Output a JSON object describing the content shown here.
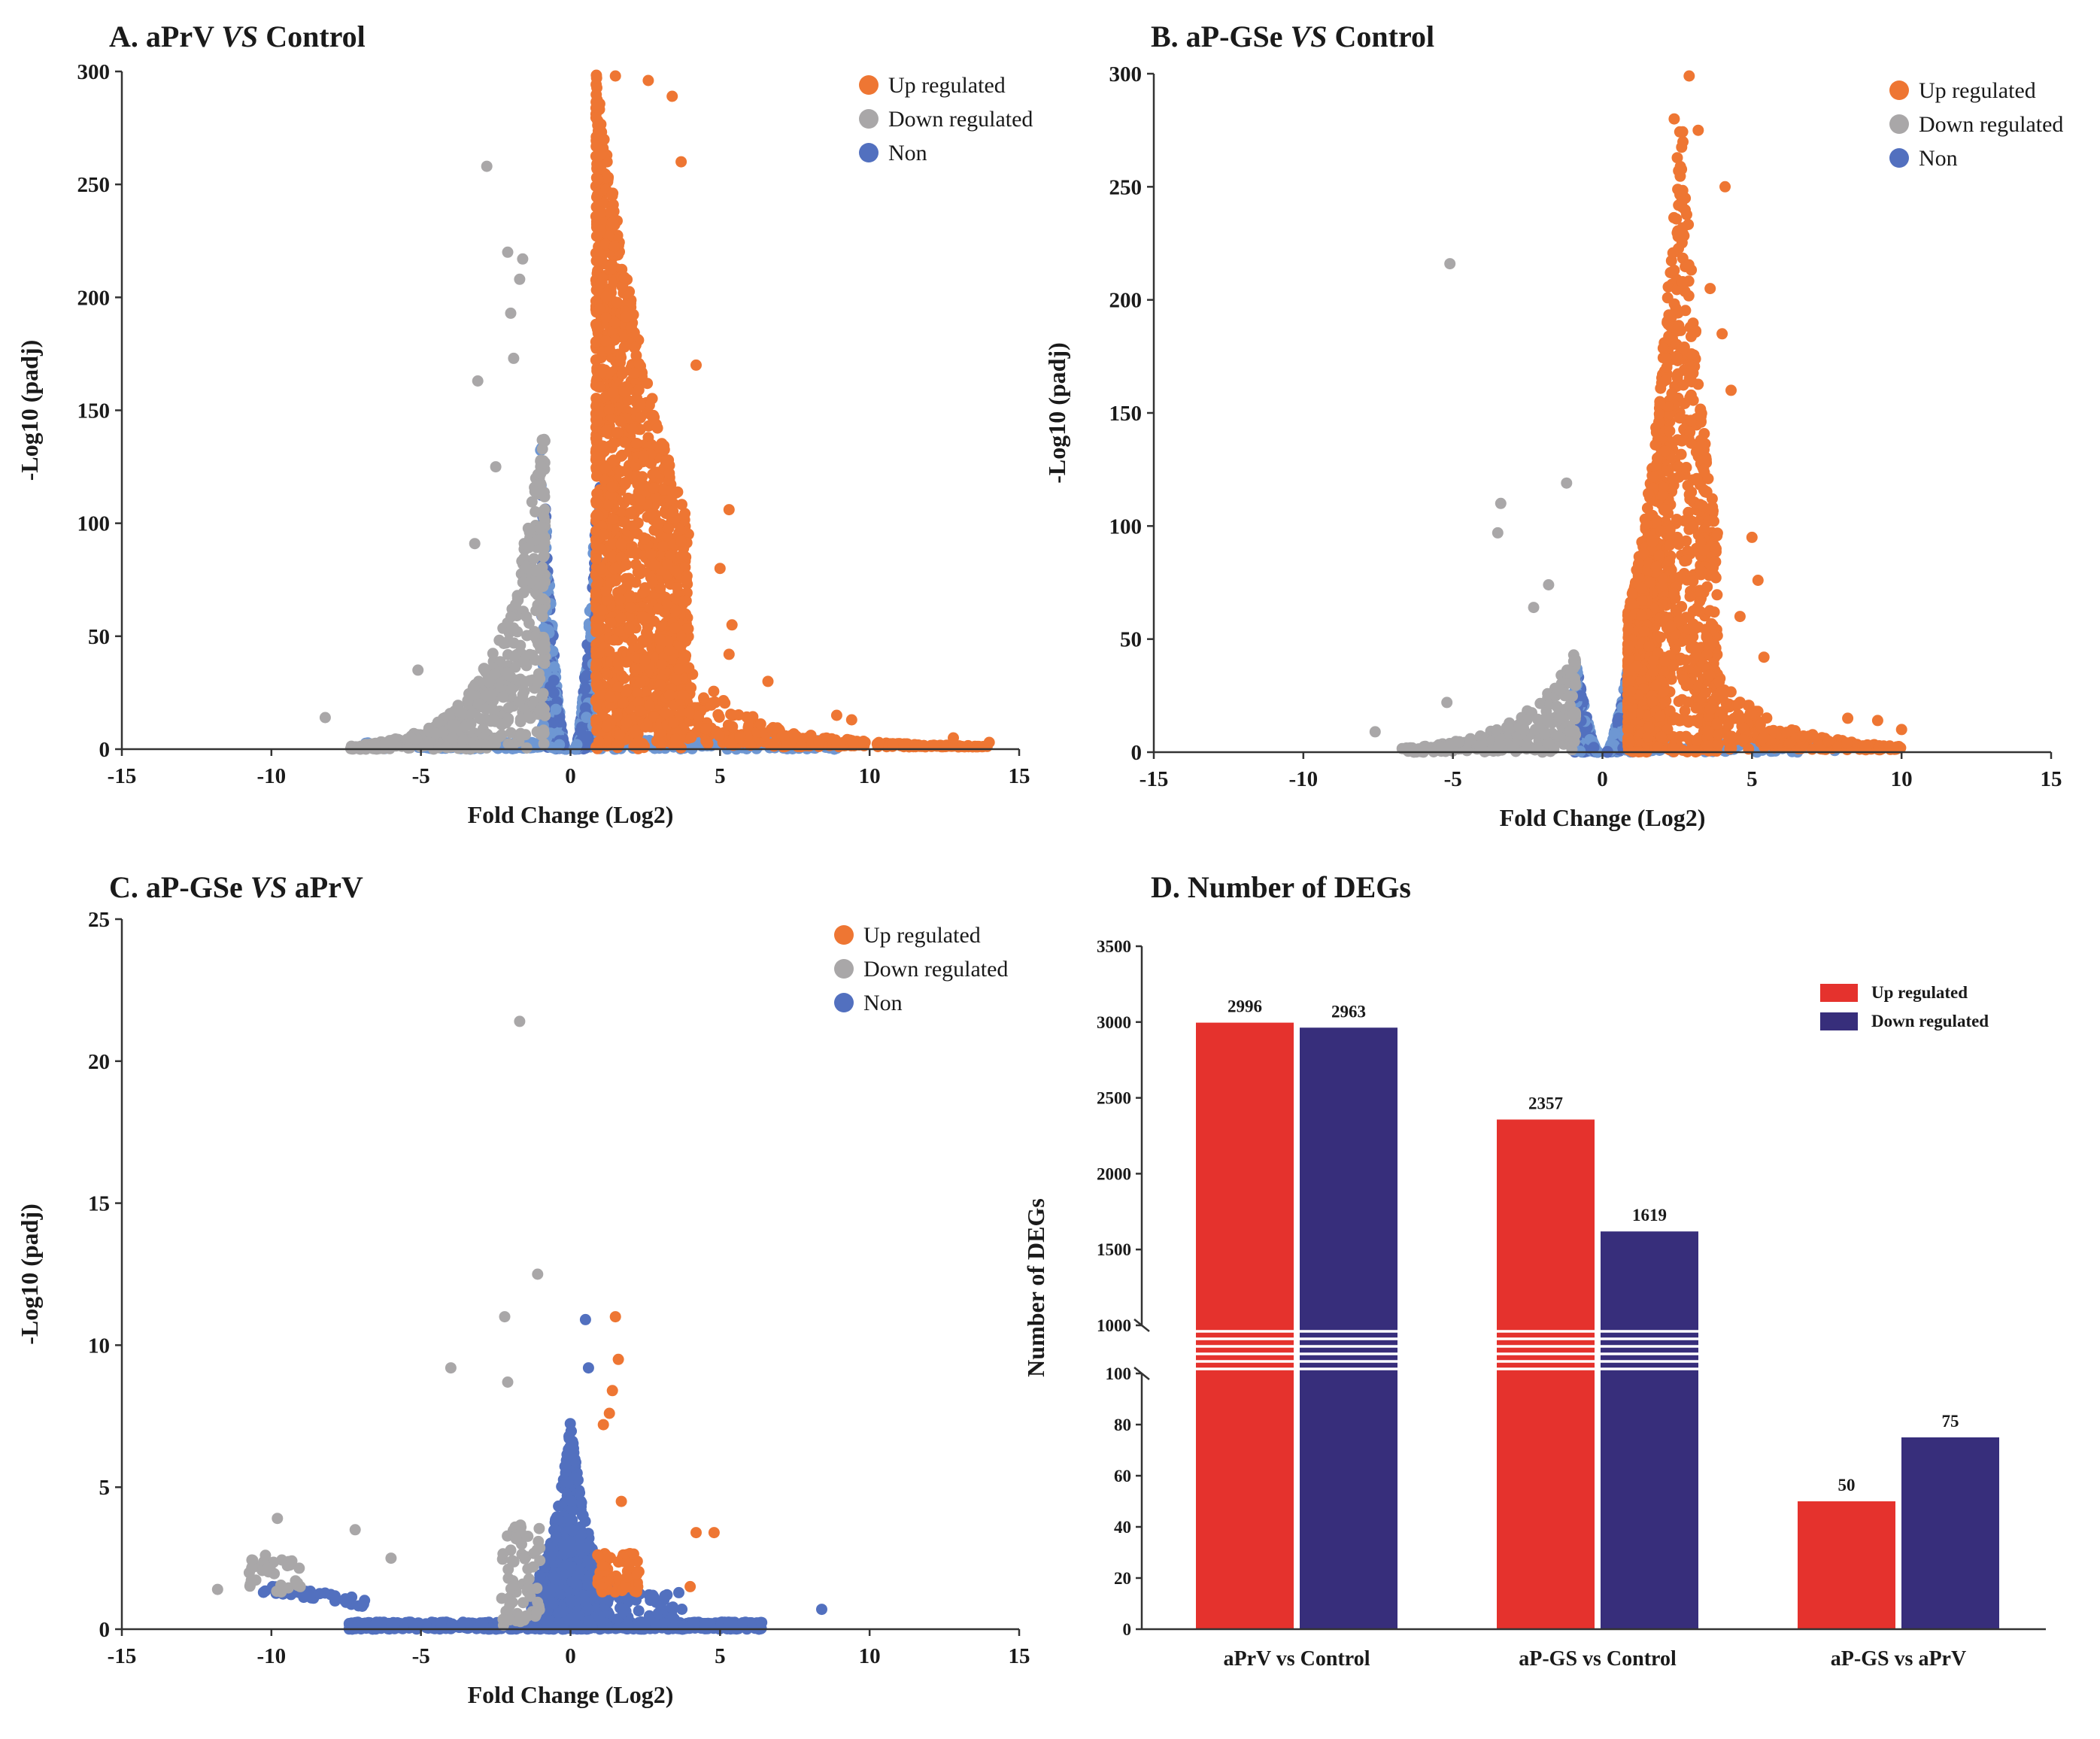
{
  "colors": {
    "up": "#EE7633",
    "down": "#A9A7A8",
    "non": "#5270BF",
    "non_light": "#6E97D3",
    "bar_up": "#E5322D",
    "bar_down": "#372E7B",
    "axis": "#333333"
  },
  "chart_data": [
    {
      "type": "scatter",
      "title_prefix": "A. aPrV ",
      "title_vs": "VS",
      "title_suffix": " Control",
      "xlabel": "Fold Change (Log2)",
      "ylabel": "-Log10 (padj)",
      "xlim": [
        -15,
        15
      ],
      "ylim": [
        0,
        300
      ],
      "xticks": [
        "-15",
        "-10",
        "-5",
        "0",
        "5",
        "10",
        "15"
      ],
      "yticks": [
        "0",
        "50",
        "100",
        "150",
        "200",
        "250",
        "300"
      ],
      "legend": [
        "Up regulated",
        "Down regulated",
        "Non"
      ],
      "notable_points": {
        "down": [
          [
            -2.8,
            258
          ],
          [
            -2.1,
            220
          ],
          [
            -1.6,
            217
          ],
          [
            -1.7,
            208
          ],
          [
            -2.0,
            193
          ],
          [
            -1.9,
            173
          ],
          [
            -3.1,
            163
          ],
          [
            -8.2,
            14
          ],
          [
            -5.1,
            35
          ],
          [
            -3.2,
            91
          ],
          [
            -2.5,
            125
          ]
        ],
        "up": [
          [
            1.5,
            298
          ],
          [
            2.6,
            296
          ],
          [
            3.4,
            289
          ],
          [
            3.7,
            260
          ],
          [
            4.2,
            170
          ],
          [
            5.3,
            106
          ],
          [
            5.0,
            80
          ],
          [
            5.4,
            55
          ],
          [
            5.3,
            42
          ],
          [
            6.6,
            30
          ],
          [
            8.9,
            15
          ],
          [
            9.4,
            13
          ],
          [
            12.8,
            5
          ],
          [
            14.0,
            3
          ]
        ]
      },
      "cloud": {
        "down": {
          "x_range": [
            -7.5,
            -0.8
          ],
          "y_peak": 150
        },
        "non": {
          "x_range": [
            -1,
            1
          ],
          "y_peak": 150
        },
        "up": {
          "x_range": [
            0.8,
            14
          ],
          "y_peak": 300
        }
      }
    },
    {
      "type": "scatter",
      "title_prefix": "B. aP-GSe ",
      "title_vs": "VS",
      "title_suffix": " Control",
      "xlabel": "Fold Change (Log2)",
      "ylabel": "-Log10 (padj)",
      "xlim": [
        -15,
        15
      ],
      "ylim": [
        0,
        300
      ],
      "xticks": [
        "-15",
        "-10",
        "-5",
        "0",
        "5",
        "10",
        "15"
      ],
      "yticks": [
        "0",
        "50",
        "100",
        "150",
        "200",
        "250",
        "300"
      ],
      "legend": [
        "Up regulated",
        "Down regulated",
        "Non"
      ],
      "notable_points": {
        "down": [
          [
            -5.1,
            216
          ],
          [
            -1.2,
            119
          ],
          [
            -3.4,
            110
          ],
          [
            -3.5,
            97
          ],
          [
            -1.8,
            74
          ],
          [
            -2.3,
            64
          ],
          [
            -7.6,
            9
          ],
          [
            -5.2,
            22
          ]
        ],
        "up": [
          [
            2.9,
            299
          ],
          [
            2.4,
            280
          ],
          [
            3.2,
            275
          ],
          [
            4.1,
            250
          ],
          [
            3.6,
            205
          ],
          [
            4.0,
            185
          ],
          [
            4.3,
            160
          ],
          [
            5.0,
            95
          ],
          [
            5.2,
            76
          ],
          [
            4.6,
            60
          ],
          [
            5.4,
            42
          ],
          [
            8.2,
            15
          ],
          [
            9.2,
            14
          ],
          [
            10.0,
            10
          ]
        ]
      },
      "cloud": {
        "down": {
          "x_range": [
            -6.7,
            -0.9
          ],
          "y_peak": 45
        },
        "non": {
          "x_range": [
            -1,
            1
          ],
          "y_peak": 45
        },
        "up": {
          "x_range": [
            0.8,
            10
          ],
          "y_peak": 300
        }
      }
    },
    {
      "type": "scatter",
      "title_prefix": "C. aP-GSe ",
      "title_vs": "VS",
      "title_suffix": " aPrV",
      "xlabel": "Fold Change (Log2)",
      "ylabel": "-Log10 (padj)",
      "xlim": [
        -15,
        15
      ],
      "ylim": [
        0,
        25
      ],
      "xticks": [
        "-15",
        "-10",
        "-5",
        "0",
        "5",
        "10",
        "15"
      ],
      "yticks": [
        "0",
        "5",
        "10",
        "15",
        "20",
        "25"
      ],
      "legend": [
        "Up regulated",
        "Down regulated",
        "Non"
      ],
      "notable_points": {
        "down": [
          [
            -1.7,
            21.4
          ],
          [
            -1.1,
            12.5
          ],
          [
            -2.2,
            11.0
          ],
          [
            -4.0,
            9.2
          ],
          [
            -2.1,
            8.7
          ],
          [
            -9.8,
            3.9
          ],
          [
            -7.2,
            3.5
          ],
          [
            -11.8,
            1.4
          ],
          [
            -10.2,
            2.6
          ],
          [
            -6.0,
            2.5
          ]
        ],
        "up": [
          [
            1.5,
            11.0
          ],
          [
            1.6,
            9.5
          ],
          [
            1.4,
            8.4
          ],
          [
            1.3,
            7.6
          ],
          [
            1.1,
            7.2
          ],
          [
            1.7,
            4.5
          ],
          [
            4.2,
            3.4
          ],
          [
            4.8,
            3.4
          ],
          [
            4.0,
            1.5
          ]
        ],
        "non": [
          [
            0.5,
            10.9
          ],
          [
            0.6,
            9.2
          ],
          [
            8.4,
            0.7
          ],
          [
            6.3,
            0.0
          ],
          [
            -7.3,
            0.0
          ]
        ]
      },
      "cloud": {
        "down": {
          "x_range": [
            -11,
            -1
          ],
          "y_peak": 4
        },
        "non": {
          "x_range": [
            -7.5,
            6.5
          ],
          "y_peak": 7.5
        },
        "up": {
          "x_range": [
            0.9,
            2.3
          ],
          "y_peak": 4.5
        }
      }
    },
    {
      "type": "bar",
      "title": "D. Number of DEGs",
      "ylabel": "Number of DEGs",
      "categories": [
        "aPrV vs Control",
        "aP-GS vs Control",
        "aP-GS vs aPrV"
      ],
      "series": [
        {
          "name": "Up regulated",
          "values": [
            2996,
            2357,
            50
          ],
          "labels": [
            "2996",
            "2357",
            "50"
          ]
        },
        {
          "name": "Down regulated",
          "values": [
            2963,
            1619,
            75
          ],
          "labels": [
            "2963",
            "1619",
            "75"
          ]
        }
      ],
      "axis_break": {
        "lower": [
          0,
          100
        ],
        "upper": [
          1000,
          3500
        ]
      },
      "yticks_lower": [
        "0",
        "20",
        "40",
        "60",
        "80",
        "100"
      ],
      "yticks_upper": [
        "1000",
        "1500",
        "2000",
        "2500",
        "3000",
        "3500"
      ]
    }
  ]
}
